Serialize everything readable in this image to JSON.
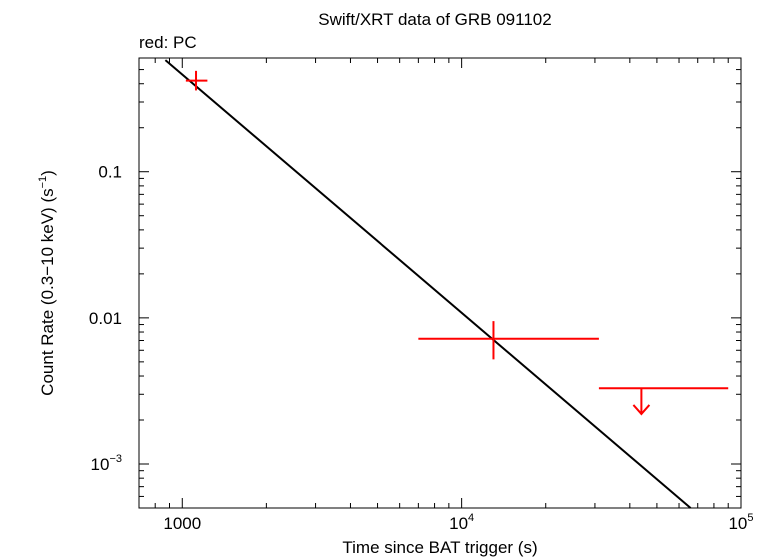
{
  "chart_data": {
    "type": "scatter",
    "title": "Swift/XRT data of GRB 091102",
    "subtitle": "red: PC",
    "xlabel": "Time since BAT trigger (s)",
    "ylabel_main": "Count Rate (0.3−10 keV) (s",
    "ylabel_sup": "−1",
    "ylabel_tail": ")",
    "x_scale": "log",
    "y_scale": "log",
    "xlim": [
      700,
      100000
    ],
    "ylim": [
      0.0005,
      0.6
    ],
    "x_ticks": [
      {
        "value": 1000,
        "label": "1000",
        "sup": ""
      },
      {
        "value": 10000,
        "label": "10",
        "sup": "4"
      },
      {
        "value": 100000,
        "label": "10",
        "sup": "5"
      }
    ],
    "y_ticks": [
      {
        "value": 0.1,
        "label": "0.1",
        "sup": ""
      },
      {
        "value": 0.01,
        "label": "0.01",
        "sup": ""
      },
      {
        "value": 0.001,
        "label": "10",
        "sup": "−3"
      }
    ],
    "series": [
      {
        "mode": "PC",
        "color": "#ff0000",
        "points": [
          {
            "x": 1120,
            "x_low": 1030,
            "x_high": 1230,
            "y": 0.42,
            "y_low": 0.36,
            "y_high": 0.49,
            "upper_limit": false
          },
          {
            "x": 13000,
            "x_low": 7000,
            "x_high": 31000,
            "y": 0.0072,
            "y_low": 0.0052,
            "y_high": 0.0095,
            "upper_limit": false
          },
          {
            "x": 44000,
            "x_low": 31000,
            "x_high": 90000,
            "y": 0.0033,
            "y_low": 0.0022,
            "y_high": 0.0033,
            "upper_limit": true
          }
        ]
      }
    ],
    "model": {
      "type": "powerlaw",
      "color": "#000000",
      "x_start": 870,
      "x_end": 66000,
      "y_at_x_start": 0.58,
      "y_at_x_end": 0.0005
    }
  }
}
